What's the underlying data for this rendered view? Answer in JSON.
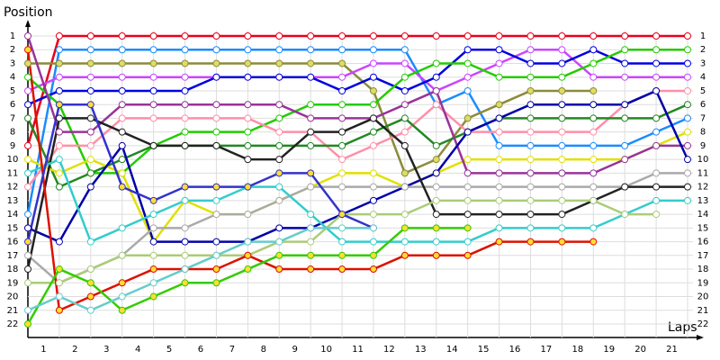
{
  "chart_data": {
    "type": "line",
    "y_label": "Position",
    "x_label": "Laps",
    "xlim": [
      0,
      21
    ],
    "xticks": [
      1,
      2,
      3,
      4,
      5,
      6,
      7,
      8,
      9,
      10,
      11,
      12,
      13,
      14,
      15,
      16,
      17,
      18,
      19,
      20,
      21
    ],
    "ylim": [
      1,
      22
    ],
    "yticks": [
      1,
      2,
      3,
      4,
      5,
      6,
      7,
      8,
      9,
      10,
      11,
      12,
      13,
      14,
      15,
      16,
      17,
      18,
      19,
      20,
      21,
      22
    ],
    "y_inverted": true,
    "grid": true,
    "x": [
      0,
      1,
      2,
      3,
      4,
      5,
      6,
      7,
      8,
      9,
      10,
      11,
      12,
      13,
      14,
      15,
      16,
      17,
      18,
      19,
      20,
      21
    ],
    "series": [
      {
        "color": "#e8001c",
        "marker_color": "#ffffff",
        "values": [
          9,
          1,
          1,
          1,
          1,
          1,
          1,
          1,
          1,
          1,
          1,
          1,
          1,
          1,
          1,
          1,
          1,
          1,
          1,
          1,
          1,
          1
        ]
      },
      {
        "color": "#1a8cff",
        "marker_color": "#ffffff",
        "values": [
          14,
          2,
          2,
          2,
          2,
          2,
          2,
          2,
          2,
          2,
          2,
          2,
          2,
          6,
          5,
          9,
          9,
          9,
          9,
          9,
          8,
          7
        ]
      },
      {
        "color": "#8b8b3a",
        "marker_color": "#dddd66",
        "values": [
          3,
          3,
          3,
          3,
          3,
          3,
          3,
          3,
          3,
          3,
          3,
          5,
          11,
          10,
          7,
          6,
          5,
          5,
          5,
          null,
          null,
          null
        ]
      },
      {
        "color": "#cc44ff",
        "marker_color": "#ffffff",
        "values": [
          5,
          4,
          4,
          4,
          4,
          4,
          4,
          4,
          4,
          4,
          4,
          3,
          3,
          5,
          4,
          3,
          2,
          2,
          4,
          4,
          4,
          4
        ]
      },
      {
        "color": "#0000e0",
        "marker_color": "#ffffff",
        "values": [
          6,
          5,
          5,
          5,
          5,
          5,
          4,
          4,
          4,
          4,
          5,
          4,
          5,
          4,
          2,
          2,
          3,
          3,
          2,
          3,
          3,
          3
        ]
      },
      {
        "color": "#22cc00",
        "marker_color": "#ffffff",
        "values": [
          4,
          6,
          11,
          11,
          9,
          8,
          8,
          8,
          7,
          6,
          6,
          6,
          4,
          3,
          3,
          4,
          4,
          4,
          3,
          2,
          2,
          2
        ]
      },
      {
        "color": "#ff8fa8",
        "marker_color": "#ffffff",
        "values": [
          12,
          9,
          9,
          7,
          7,
          7,
          7,
          7,
          8,
          8,
          10,
          9,
          8,
          6,
          8,
          8,
          8,
          8,
          8,
          6,
          5,
          5
        ]
      },
      {
        "color": "#228822",
        "marker_color": "#ffffff",
        "values": [
          7,
          12,
          11,
          10,
          9,
          9,
          9,
          9,
          9,
          9,
          9,
          8,
          7,
          9,
          8,
          7,
          7,
          7,
          7,
          7,
          7,
          6
        ]
      },
      {
        "color": "#e0e000",
        "marker_color": "#ffffff",
        "values": [
          10,
          11,
          10,
          11,
          16,
          13,
          14,
          14,
          13,
          12,
          11,
          11,
          12,
          11,
          10,
          10,
          10,
          10,
          10,
          10,
          9,
          8
        ]
      },
      {
        "color": "#993399",
        "marker_color": "#ffffff",
        "values": [
          1,
          8,
          8,
          6,
          6,
          6,
          6,
          6,
          6,
          7,
          7,
          7,
          6,
          5,
          11,
          11,
          11,
          11,
          11,
          10,
          9,
          9
        ]
      },
      {
        "color": "#0000aa",
        "marker_color": "#ffffff",
        "values": [
          15,
          16,
          12,
          9,
          16,
          16,
          16,
          16,
          15,
          15,
          14,
          13,
          12,
          11,
          8,
          7,
          6,
          6,
          6,
          6,
          5,
          10
        ]
      },
      {
        "color": "#aaaaaa",
        "marker_color": "#ffffff",
        "values": [
          17,
          19,
          18,
          17,
          15,
          15,
          14,
          14,
          13,
          12,
          12,
          12,
          12,
          12,
          12,
          12,
          12,
          12,
          12,
          12,
          11,
          11
        ]
      },
      {
        "color": "#222222",
        "marker_color": "#ffffff",
        "values": [
          18,
          7,
          7,
          8,
          9,
          9,
          9,
          10,
          10,
          8,
          8,
          7,
          9,
          14,
          14,
          14,
          14,
          14,
          13,
          12,
          12,
          12
        ]
      },
      {
        "color": "#33cccc",
        "marker_color": "#ffffff",
        "values": [
          11,
          10,
          16,
          15,
          14,
          13,
          13,
          12,
          12,
          14,
          16,
          16,
          16,
          16,
          16,
          15,
          15,
          15,
          15,
          14,
          13,
          13
        ]
      },
      {
        "color": "#aacc77",
        "marker_color": "#ffffff",
        "values": [
          19,
          19,
          18,
          17,
          17,
          17,
          17,
          17,
          16,
          16,
          14,
          14,
          14,
          13,
          13,
          13,
          13,
          13,
          13,
          14,
          14,
          null
        ]
      },
      {
        "color": "#dd1100",
        "marker_color": "#ffdd33",
        "values": [
          2,
          21,
          20,
          19,
          18,
          18,
          18,
          17,
          18,
          18,
          18,
          18,
          17,
          17,
          17,
          16,
          16,
          16,
          16,
          null,
          null,
          null
        ]
      },
      {
        "color": "#3333cc",
        "marker_color": "#ffdd33",
        "values": [
          16,
          6,
          6,
          12,
          13,
          12,
          12,
          12,
          11,
          11,
          14,
          15,
          null,
          null,
          null,
          null,
          null,
          null,
          null,
          null,
          null,
          null
        ]
      },
      {
        "color": "#33cc00",
        "marker_color": "#ffdd33",
        "values": [
          22,
          18,
          19,
          21,
          20,
          19,
          19,
          18,
          17,
          17,
          17,
          17,
          15,
          15,
          15,
          null,
          null,
          null,
          null,
          null,
          null,
          null
        ]
      },
      {
        "color": "#66cccc",
        "marker_color": "#ffffff",
        "values": [
          21,
          20,
          21,
          20,
          19,
          18,
          17,
          16,
          16,
          15,
          15,
          15,
          null,
          null,
          null,
          null,
          null,
          null,
          null,
          null,
          null,
          null
        ]
      }
    ]
  }
}
